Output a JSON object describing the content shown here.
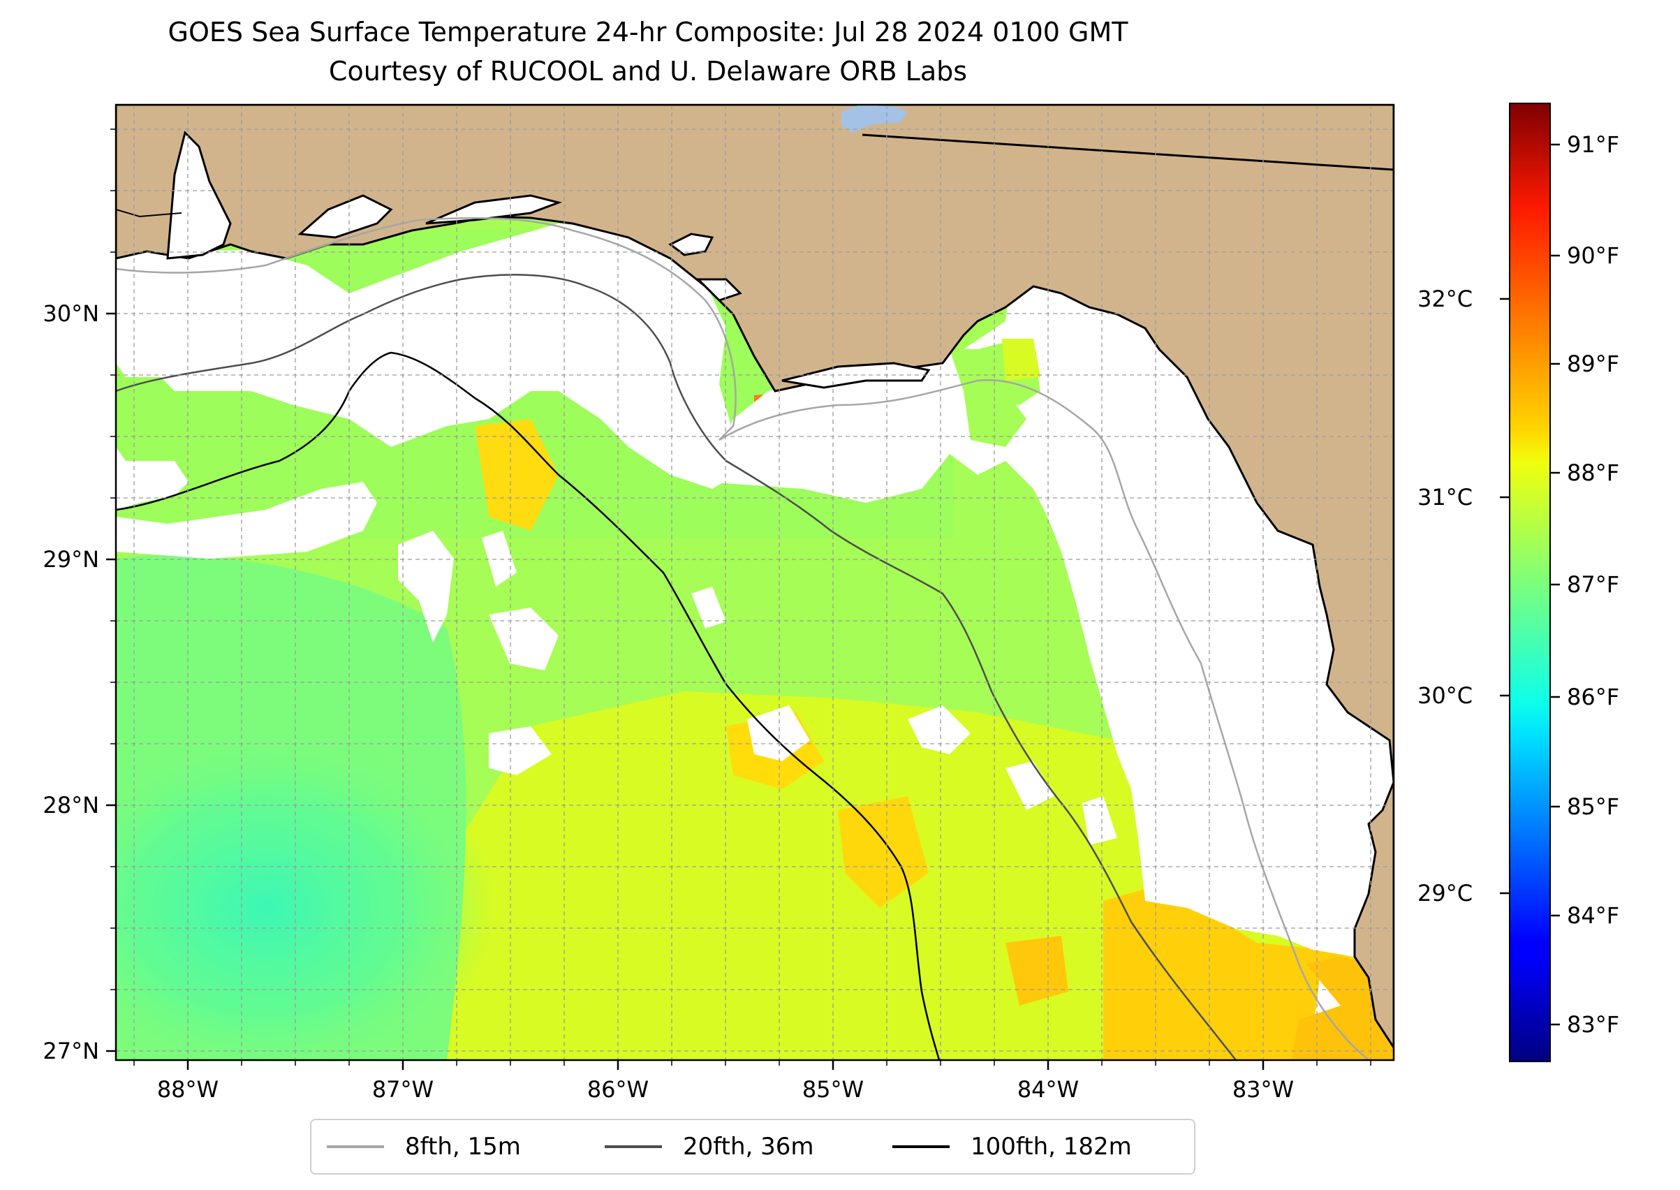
{
  "title": "GOES Sea Surface Temperature 24-hr Composite: Jul 28 2024 0100 GMT",
  "subtitle": "Courtesy of RUCOOL and U. Delaware ORB Labs",
  "map": {
    "lon_ticks": [
      "88°W",
      "87°W",
      "86°W",
      "85°W",
      "84°W",
      "83°W"
    ],
    "lat_ticks": [
      "30°N",
      "29°N",
      "28°N",
      "27°N"
    ],
    "colors": {
      "land": "#d2b48c",
      "water": "#a4c1e6",
      "iso15": "#a6a6a6",
      "iso36": "#4d4d4d",
      "iso182": "#000000"
    }
  },
  "colorbar": {
    "colormap": "jet",
    "fahrenheit_ticks": [
      "83°F",
      "84°F",
      "85°F",
      "86°F",
      "87°F",
      "88°F",
      "89°F",
      "90°F",
      "91°F"
    ],
    "celsius_ticks": [
      "29°C",
      "30°C",
      "31°C",
      "32°C"
    ]
  },
  "legend": {
    "items": [
      {
        "label": "8fth, 15m",
        "color": "#a6a6a6"
      },
      {
        "label": "20fth, 36m",
        "color": "#4d4d4d"
      },
      {
        "label": "100fth, 182m",
        "color": "#000000"
      }
    ]
  }
}
